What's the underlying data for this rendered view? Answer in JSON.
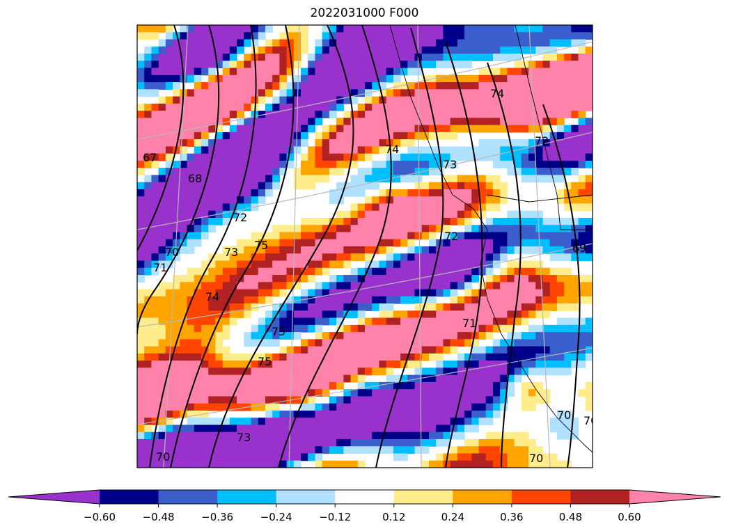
{
  "chart_data": {
    "type": "heatmap",
    "title": "2022031000 F000",
    "field": {
      "grid_cols": 64,
      "grid_rows": 62,
      "seed": 20220310
    },
    "contour_labels": [
      "67",
      "68",
      "70",
      "71",
      "72",
      "73",
      "74",
      "75",
      "75",
      "75",
      "74",
      "73",
      "74",
      "73",
      "70",
      "71",
      "70",
      "69",
      "70",
      "70",
      "72",
      "72"
    ],
    "colorbar": {
      "extend": "both",
      "levels": [
        -0.6,
        -0.48,
        -0.36,
        -0.24,
        -0.12,
        0.12,
        0.24,
        0.36,
        0.48,
        0.6
      ],
      "tick_labels": [
        "−0.60",
        "−0.48",
        "−0.36",
        "−0.24",
        "−0.12",
        "0.12",
        "0.24",
        "0.36",
        "0.48",
        "0.60"
      ],
      "colors": [
        "#9932cc",
        "#00008b",
        "#3a5fcd",
        "#00bfff",
        "#b0e2ff",
        "#ffffff",
        "#ffec8b",
        "#ffa500",
        "#ff4500",
        "#b22222",
        "#ff82ab"
      ]
    }
  }
}
